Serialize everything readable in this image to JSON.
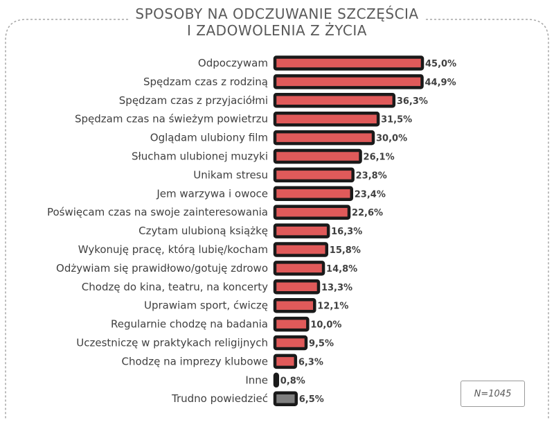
{
  "title_line1": "SPOSOBY NA ODCZUWANIE SZCZĘŚCIA",
  "title_line2": "I ZADOWOLENIA Z ŻYCIA",
  "sample_note": "N=1045",
  "colors": {
    "bar": "#e05a5a",
    "bar_other": "#7f7f7f",
    "outline": "#1a1a1a",
    "text": "#404040"
  },
  "chart_data": {
    "type": "bar",
    "orientation": "horizontal",
    "title": "SPOSOBY NA ODCZUWANIE SZCZĘŚCIA I ZADOWOLENIA Z ŻYCIA",
    "categories": [
      "Odpoczywam",
      "Spędzam czas z rodziną",
      "Spędzam czas z przyjaciółmi",
      "Spędzam czas na świeżym powietrzu",
      "Oglądam ulubiony film",
      "Słucham ulubionej muzyki",
      "Unikam stresu",
      "Jem warzywa i owoce",
      "Poświęcam czas na swoje zainteresowania",
      "Czytam ulubioną książkę",
      "Wykonuję pracę, którą lubię/kocham",
      "Odżywiam się prawidłowo/gotuję zdrowo",
      "Chodzę do kina, teatru, na koncerty",
      "Uprawiam sport, ćwiczę",
      "Regularnie chodzę na badania",
      "Uczestniczę w praktykach religijnych",
      "Chodzę na imprezy klubowe",
      "Inne",
      "Trudno powiedzieć"
    ],
    "values": [
      45.0,
      44.9,
      36.3,
      31.5,
      30.0,
      26.1,
      23.8,
      23.4,
      22.6,
      16.3,
      15.8,
      14.8,
      13.3,
      12.1,
      10.0,
      9.5,
      6.3,
      0.8,
      6.5
    ],
    "value_labels": [
      "45,0%",
      "44,9%",
      "36,3%",
      "31,5%",
      "30,0%",
      "26,1%",
      "23,8%",
      "23,4%",
      "22,6%",
      "16,3%",
      "15,8%",
      "14,8%",
      "13,3%",
      "12,1%",
      "10,0%",
      "9,5%",
      "6,3%",
      "0,8%",
      "6,5%"
    ],
    "highlight_gray": [
      "Trudno powiedzieć"
    ],
    "unit": "%",
    "xlim": [
      0,
      45
    ],
    "grid": false,
    "legend": "none"
  }
}
